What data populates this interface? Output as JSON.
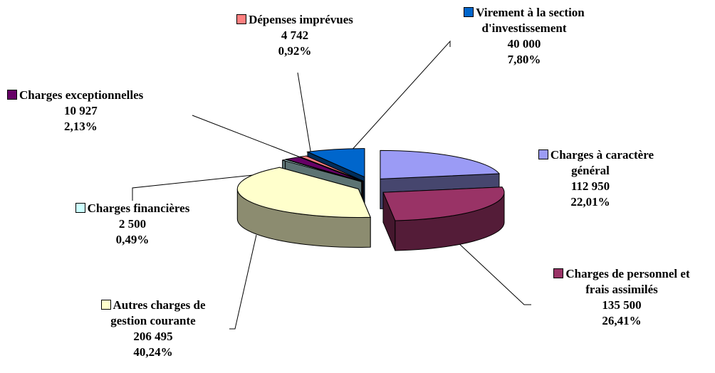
{
  "chart_data": {
    "type": "pie",
    "title": "",
    "slices": [
      {
        "label": "Charges à caractère général",
        "label_lines": [
          "Charges à caractère",
          "général"
        ],
        "value": 112950,
        "value_text": "112 950",
        "percent": 22.01,
        "percent_text": "22,01%",
        "color": "#9B9BF5"
      },
      {
        "label": "Charges de personnel et frais assimilés",
        "label_lines": [
          "Charges de personnel et",
          "frais assimilés"
        ],
        "value": 135500,
        "value_text": "135 500",
        "percent": 26.41,
        "percent_text": "26,41%",
        "color": "#993366"
      },
      {
        "label": "Autres charges de gestion courante",
        "label_lines": [
          "Autres charges de",
          "gestion courante"
        ],
        "value": 206495,
        "value_text": "206 495",
        "percent": 40.24,
        "percent_text": "40,24%",
        "color": "#FFFFCC"
      },
      {
        "label": "Charges financières",
        "label_lines": [
          "Charges financières"
        ],
        "value": 2500,
        "value_text": "2 500",
        "percent": 0.49,
        "percent_text": "0,49%",
        "color": "#CCFFFF"
      },
      {
        "label": "Charges exceptionnelles",
        "label_lines": [
          "Charges exceptionnelles"
        ],
        "value": 10927,
        "value_text": "10 927",
        "percent": 2.13,
        "percent_text": "2,13%",
        "color": "#660066"
      },
      {
        "label": "Dépenses imprévues",
        "label_lines": [
          "Dépenses imprévues"
        ],
        "value": 4742,
        "value_text": "4 742",
        "percent": 0.92,
        "percent_text": "0,92%",
        "color": "#FF8080"
      },
      {
        "label": "Virement à la section d'investissement",
        "label_lines": [
          "Virement à la section",
          "d'investissement"
        ],
        "value": 40000,
        "value_text": "40 000",
        "percent": 7.8,
        "percent_text": "7,80%",
        "color": "#0066CC"
      }
    ],
    "legend": "none",
    "style": "3d-exploded-pie"
  }
}
